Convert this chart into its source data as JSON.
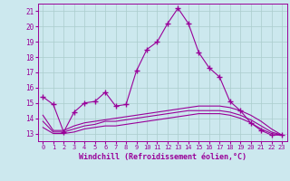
{
  "title": "",
  "xlabel": "Windchill (Refroidissement éolien,°C)",
  "ylabel": "",
  "background_color": "#cce8ee",
  "line_color": "#990099",
  "grid_color": "#aacccc",
  "xlim": [
    -0.5,
    23.5
  ],
  "ylim": [
    12.5,
    21.5
  ],
  "yticks": [
    13,
    14,
    15,
    16,
    17,
    18,
    19,
    20,
    21
  ],
  "xticks": [
    0,
    1,
    2,
    3,
    4,
    5,
    6,
    7,
    8,
    9,
    10,
    11,
    12,
    13,
    14,
    15,
    16,
    17,
    18,
    19,
    20,
    21,
    22,
    23
  ],
  "series": [
    {
      "x": [
        0,
        1,
        2,
        3,
        4,
        5,
        6,
        7,
        8,
        9,
        10,
        11,
        12,
        13,
        14,
        15,
        16,
        17,
        18,
        19,
        20,
        21,
        22,
        23
      ],
      "y": [
        15.4,
        14.9,
        13.1,
        14.4,
        15.0,
        15.1,
        15.7,
        14.8,
        14.9,
        17.1,
        18.5,
        19.0,
        20.2,
        21.2,
        20.2,
        18.3,
        17.3,
        16.7,
        15.1,
        14.5,
        13.7,
        13.2,
        12.9,
        12.9
      ],
      "marker": "+"
    },
    {
      "x": [
        0,
        1,
        2,
        3,
        4,
        5,
        6,
        7,
        8,
        9,
        10,
        11,
        12,
        13,
        14,
        15,
        16,
        17,
        18,
        19,
        20,
        21,
        22,
        23
      ],
      "y": [
        14.2,
        13.2,
        13.2,
        13.5,
        13.7,
        13.8,
        13.9,
        14.0,
        14.1,
        14.2,
        14.3,
        14.4,
        14.5,
        14.6,
        14.7,
        14.8,
        14.8,
        14.8,
        14.7,
        14.5,
        14.2,
        13.8,
        13.3,
        12.9
      ],
      "marker": null
    },
    {
      "x": [
        0,
        1,
        2,
        3,
        4,
        5,
        6,
        7,
        8,
        9,
        10,
        11,
        12,
        13,
        14,
        15,
        16,
        17,
        18,
        19,
        20,
        21,
        22,
        23
      ],
      "y": [
        13.8,
        13.1,
        13.1,
        13.3,
        13.5,
        13.6,
        13.8,
        13.8,
        13.9,
        14.0,
        14.1,
        14.2,
        14.3,
        14.4,
        14.5,
        14.5,
        14.5,
        14.5,
        14.4,
        14.2,
        13.9,
        13.5,
        13.1,
        12.9
      ],
      "marker": null
    },
    {
      "x": [
        0,
        1,
        2,
        3,
        4,
        5,
        6,
        7,
        8,
        9,
        10,
        11,
        12,
        13,
        14,
        15,
        16,
        17,
        18,
        19,
        20,
        21,
        22,
        23
      ],
      "y": [
        13.4,
        13.0,
        13.0,
        13.1,
        13.3,
        13.4,
        13.5,
        13.5,
        13.6,
        13.7,
        13.8,
        13.9,
        14.0,
        14.1,
        14.2,
        14.3,
        14.3,
        14.3,
        14.2,
        14.0,
        13.7,
        13.3,
        13.0,
        12.9
      ],
      "marker": null
    }
  ]
}
